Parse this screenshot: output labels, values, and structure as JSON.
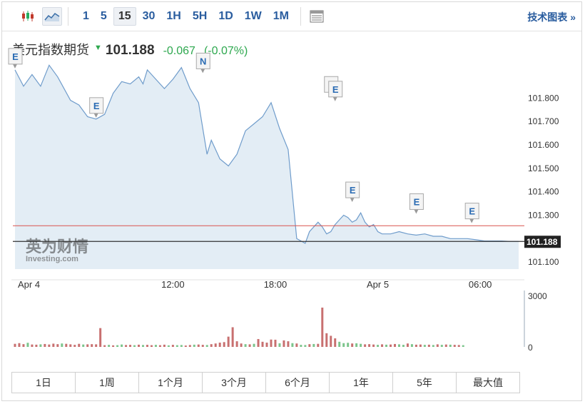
{
  "toolbar": {
    "chart_type_icons": [
      "candlestick-icon",
      "area-line-icon"
    ],
    "timeframes": [
      "1",
      "5",
      "15",
      "30",
      "1H",
      "5H",
      "1D",
      "1W",
      "1M"
    ],
    "active_timeframe": "15",
    "table_icon": "table-view-icon",
    "tech_link": "技术图表 »"
  },
  "quote": {
    "name": "美元指数期货",
    "direction": "down",
    "price": "101.188",
    "change": "-0.067",
    "change_pct": "(-0.07%)",
    "change_color": "#2ea84f"
  },
  "watermark": {
    "line1": "英为财情",
    "line2_a": "Investing",
    "line2_b": ".com"
  },
  "ranges": [
    "1日",
    "1周",
    "1个月",
    "3个月",
    "6个月",
    "1年",
    "5年",
    "最大值"
  ],
  "colors": {
    "line": "#6f9ccb",
    "area": "#e3edf5",
    "ref_line": "#d9534f",
    "price_tag": "#222222",
    "volume": "#c87070",
    "volume_green": "#7cc58c"
  },
  "chart_data": {
    "type": "area",
    "price_axis": {
      "ticks": [
        "101.800",
        "101.700",
        "101.600",
        "101.500",
        "101.400",
        "101.300",
        "101.100"
      ],
      "tick_values": [
        101.8,
        101.7,
        101.6,
        101.5,
        101.4,
        101.3,
        101.1
      ],
      "range": [
        101.07,
        101.95
      ]
    },
    "x_ticks": [
      {
        "label": "Apr 4",
        "t": 0
      },
      {
        "label": "12:00",
        "t": 37
      },
      {
        "label": "18:00",
        "t": 61
      },
      {
        "label": "Apr 5",
        "t": 85
      },
      {
        "label": "06:00",
        "t": 109
      }
    ],
    "x_range": [
      -0.5,
      118.5
    ],
    "series": [
      {
        "x": [
          0,
          2,
          4,
          6,
          8,
          10,
          13,
          15,
          17,
          19,
          21,
          23,
          25,
          27,
          29,
          30,
          31,
          33,
          35,
          37,
          39,
          41,
          43,
          45,
          46,
          48,
          50,
          52,
          54,
          56,
          58,
          60,
          62,
          64,
          66,
          68,
          69,
          71,
          72,
          73,
          74,
          75,
          76,
          77,
          78,
          79,
          80,
          81,
          82,
          83,
          84,
          85,
          86,
          88,
          90,
          92,
          94,
          96,
          98,
          100,
          102,
          104,
          106,
          108,
          110,
          112,
          114,
          116,
          118
        ],
        "y": [
          101.92,
          101.85,
          101.9,
          101.85,
          101.94,
          101.89,
          101.79,
          101.77,
          101.72,
          101.71,
          101.73,
          101.82,
          101.87,
          101.86,
          101.89,
          101.86,
          101.92,
          101.88,
          101.84,
          101.88,
          101.93,
          101.84,
          101.78,
          101.56,
          101.62,
          101.54,
          101.51,
          101.56,
          101.66,
          101.69,
          101.72,
          101.78,
          101.67,
          101.58,
          101.2,
          101.18,
          101.23,
          101.27,
          101.25,
          101.22,
          101.23,
          101.26,
          101.28,
          101.3,
          101.29,
          101.27,
          101.28,
          101.31,
          101.27,
          101.25,
          101.26,
          101.23,
          101.22,
          101.22,
          101.23,
          101.22,
          101.215,
          101.22,
          101.21,
          101.21,
          101.2,
          101.2,
          101.2,
          101.195,
          101.19,
          101.19,
          101.19,
          101.188,
          101.188
        ],
        "area": true
      }
    ],
    "reference_line": 101.255,
    "last_price": 101.188,
    "last_price_label": "101.188",
    "events": [
      {
        "label": "E",
        "x": 0,
        "y": 101.92
      },
      {
        "label": "E",
        "x": 19,
        "y": 101.71
      },
      {
        "label": "N",
        "x": 44,
        "y": 101.9
      },
      {
        "label": "E",
        "x": 74,
        "y": 101.8
      },
      {
        "label": "E",
        "x": 75,
        "y": 101.78
      },
      {
        "label": "E",
        "x": 79,
        "y": 101.35
      },
      {
        "label": "E",
        "x": 94,
        "y": 101.3
      },
      {
        "label": "E",
        "x": 107,
        "y": 101.26
      }
    ],
    "volume_axis": {
      "ticks": [
        "3000",
        "0"
      ],
      "tick_values": [
        3000,
        0
      ],
      "range": [
        0,
        3300
      ]
    },
    "volume": {
      "x": [
        0,
        1,
        2,
        3,
        4,
        5,
        6,
        7,
        8,
        9,
        10,
        11,
        12,
        13,
        14,
        15,
        16,
        17,
        18,
        19,
        20,
        21,
        22,
        23,
        24,
        25,
        26,
        27,
        28,
        29,
        30,
        31,
        32,
        33,
        34,
        35,
        36,
        37,
        38,
        39,
        40,
        41,
        42,
        43,
        44,
        45,
        46,
        47,
        48,
        49,
        50,
        51,
        52,
        53,
        54,
        55,
        56,
        57,
        58,
        59,
        60,
        61,
        62,
        63,
        64,
        65,
        66,
        67,
        68,
        69,
        70,
        71,
        72,
        73,
        74,
        75,
        76,
        77,
        78,
        79,
        80,
        81,
        82,
        83,
        84,
        85,
        86,
        87,
        88,
        89,
        90,
        91,
        92,
        93,
        94,
        95,
        96,
        97,
        98,
        99,
        100,
        101,
        102,
        103,
        104,
        105
      ],
      "values": [
        180,
        220,
        160,
        240,
        140,
        130,
        150,
        170,
        140,
        190,
        160,
        200,
        180,
        150,
        120,
        180,
        140,
        150,
        160,
        150,
        1100,
        100,
        120,
        90,
        100,
        140,
        110,
        120,
        100,
        130,
        110,
        120,
        100,
        120,
        100,
        130,
        90,
        120,
        100,
        110,
        80,
        110,
        130,
        140,
        120,
        110,
        160,
        200,
        250,
        280,
        600,
        1150,
        330,
        200,
        160,
        150,
        180,
        460,
        300,
        250,
        430,
        420,
        210,
        380,
        330,
        220,
        200,
        120,
        110,
        160,
        170,
        180,
        2300,
        800,
        650,
        500,
        300,
        220,
        240,
        200,
        210,
        180,
        150,
        160,
        140,
        120,
        150,
        130,
        140,
        170,
        150,
        120,
        200,
        160,
        130,
        140,
        120,
        130,
        110,
        150,
        120,
        140,
        130,
        120,
        110,
        100
      ],
      "colors": [
        "r",
        "r",
        "r",
        "g",
        "r",
        "r",
        "g",
        "r",
        "r",
        "r",
        "r",
        "g",
        "r",
        "r",
        "r",
        "r",
        "g",
        "r",
        "r",
        "r",
        "r",
        "r",
        "g",
        "r",
        "g",
        "g",
        "r",
        "r",
        "g",
        "r",
        "g",
        "r",
        "r",
        "g",
        "r",
        "r",
        "g",
        "r",
        "g",
        "g",
        "r",
        "r",
        "g",
        "r",
        "r",
        "g",
        "r",
        "r",
        "r",
        "r",
        "r",
        "r",
        "r",
        "r",
        "g",
        "r",
        "g",
        "r",
        "r",
        "r",
        "r",
        "r",
        "g",
        "r",
        "r",
        "g",
        "r",
        "g",
        "g",
        "r",
        "g",
        "r",
        "r",
        "r",
        "r",
        "r",
        "g",
        "g",
        "g",
        "r",
        "g",
        "g",
        "r",
        "r",
        "r",
        "g",
        "r",
        "g",
        "r",
        "r",
        "g",
        "g",
        "r",
        "g",
        "r",
        "r",
        "g",
        "r",
        "g",
        "r",
        "g",
        "r",
        "g",
        "r",
        "r",
        "g"
      ]
    }
  }
}
